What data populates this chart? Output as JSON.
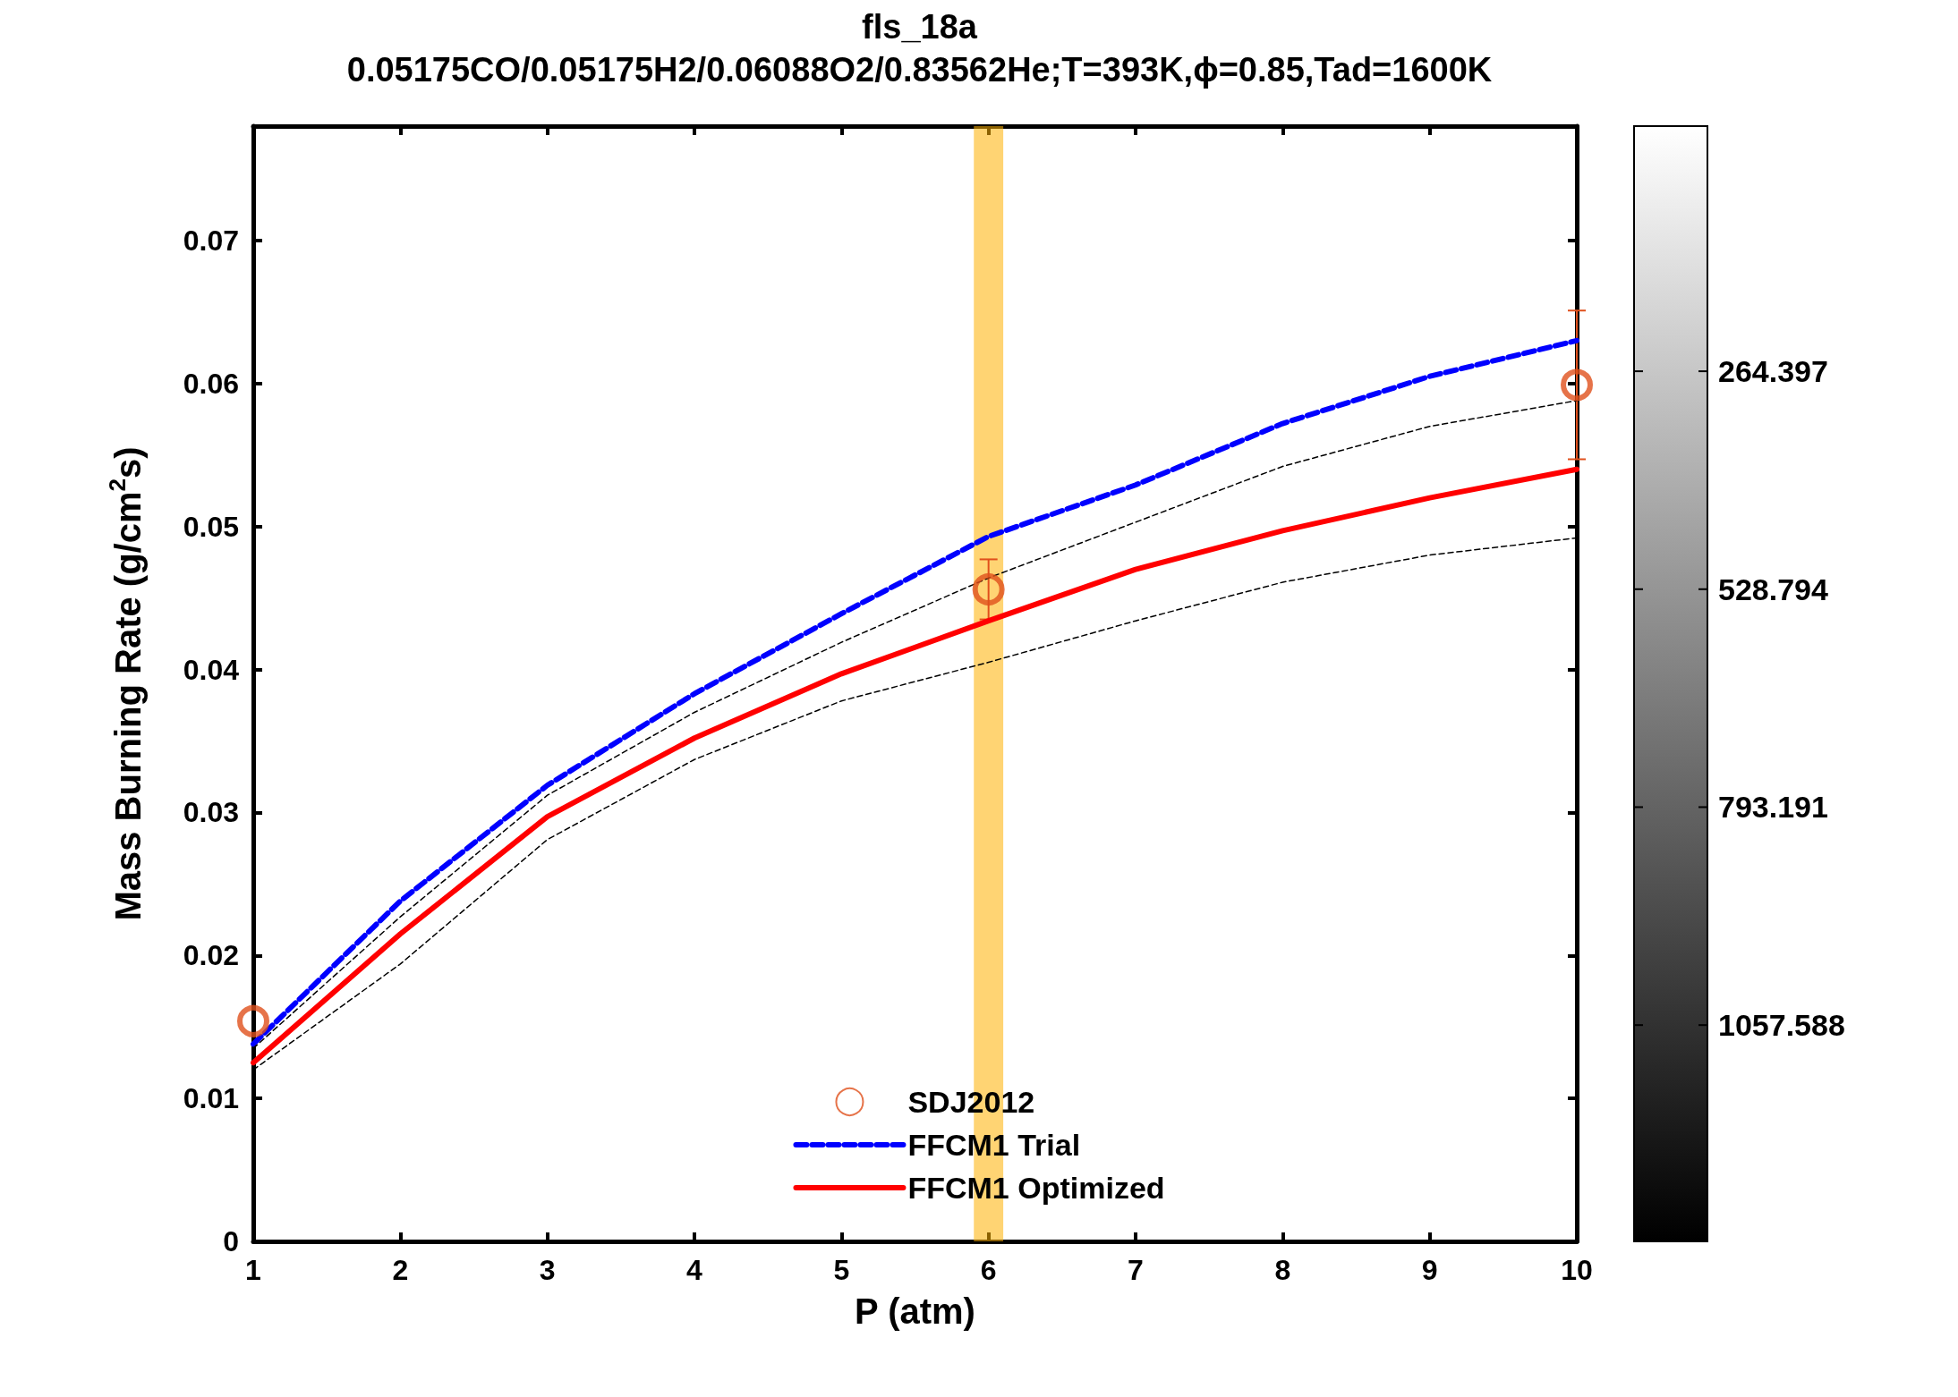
{
  "chart_data": {
    "type": "line",
    "title": "fls_18a",
    "subtitle": "0.05175CO/0.05175H2/0.06088O2/0.83562He;T=393K,ϕ=0.85,Tad=1600K",
    "xlabel": "P (atm)",
    "ylabel": "Mass Burning Rate (g/cm$^{2}$s)",
    "xlim": [
      1,
      10
    ],
    "xticks": [
      1,
      2,
      3,
      4,
      5,
      6,
      7,
      8,
      9,
      10
    ],
    "ylim": [
      0,
      0.078
    ],
    "yticks": [
      0,
      0.01,
      0.02,
      0.03,
      0.04,
      0.05,
      0.06,
      0.07
    ],
    "grid": false,
    "legend": "bottom",
    "clim": [
      -33,
      1320
    ],
    "cticks": [
      264.397,
      528.794,
      793.191,
      1057.588
    ],
    "bands": [
      {
        "axis": "x",
        "from": 5.9,
        "to": 6.1,
        "color": "#ffb000"
      }
    ],
    "series": [
      {
        "name": "SDJ2012",
        "type": "scatter",
        "marker": "circle",
        "color": "#e0501c",
        "x": [
          1,
          6,
          10
        ],
        "values": [
          0.0154,
          0.0456,
          0.0599
        ],
        "errors": [
          null,
          0.0021,
          0.0052
        ]
      },
      {
        "name": "FFCM1 Trial",
        "type": "line",
        "line_style": "dashed",
        "color": "#0000ff",
        "x": [
          1,
          2,
          3,
          4,
          5,
          6,
          7,
          8,
          9,
          10
        ],
        "values": [
          0.0138,
          0.0238,
          0.0319,
          0.0383,
          0.0439,
          0.0493,
          0.0529,
          0.0572,
          0.0605,
          0.063
        ]
      },
      {
        "name": "FFCM1 Optimized",
        "type": "line",
        "line_style": "solid",
        "color": "#ff0000",
        "x": [
          1,
          2,
          3,
          4,
          5,
          6,
          7,
          8,
          9,
          10
        ],
        "values": [
          0.0125,
          0.0215,
          0.0297,
          0.0352,
          0.0397,
          0.0434,
          0.047,
          0.0497,
          0.052,
          0.054
        ]
      },
      {
        "type": "line",
        "line_style": "dashed",
        "color": "#000000",
        "x": [
          1,
          2,
          3,
          4,
          5,
          6,
          7,
          8,
          9,
          10
        ],
        "values": [
          0.012,
          0.0194,
          0.0281,
          0.0337,
          0.0378,
          0.0405,
          0.0434,
          0.0461,
          0.048,
          0.0492
        ]
      },
      {
        "type": "line",
        "line_style": "dashed",
        "color": "#000000",
        "x": [
          1,
          2,
          3,
          4,
          5,
          6,
          7,
          8,
          9,
          10
        ],
        "values": [
          0.0135,
          0.0227,
          0.0312,
          0.037,
          0.0419,
          0.0464,
          0.0503,
          0.0542,
          0.057,
          0.0588
        ]
      }
    ]
  }
}
